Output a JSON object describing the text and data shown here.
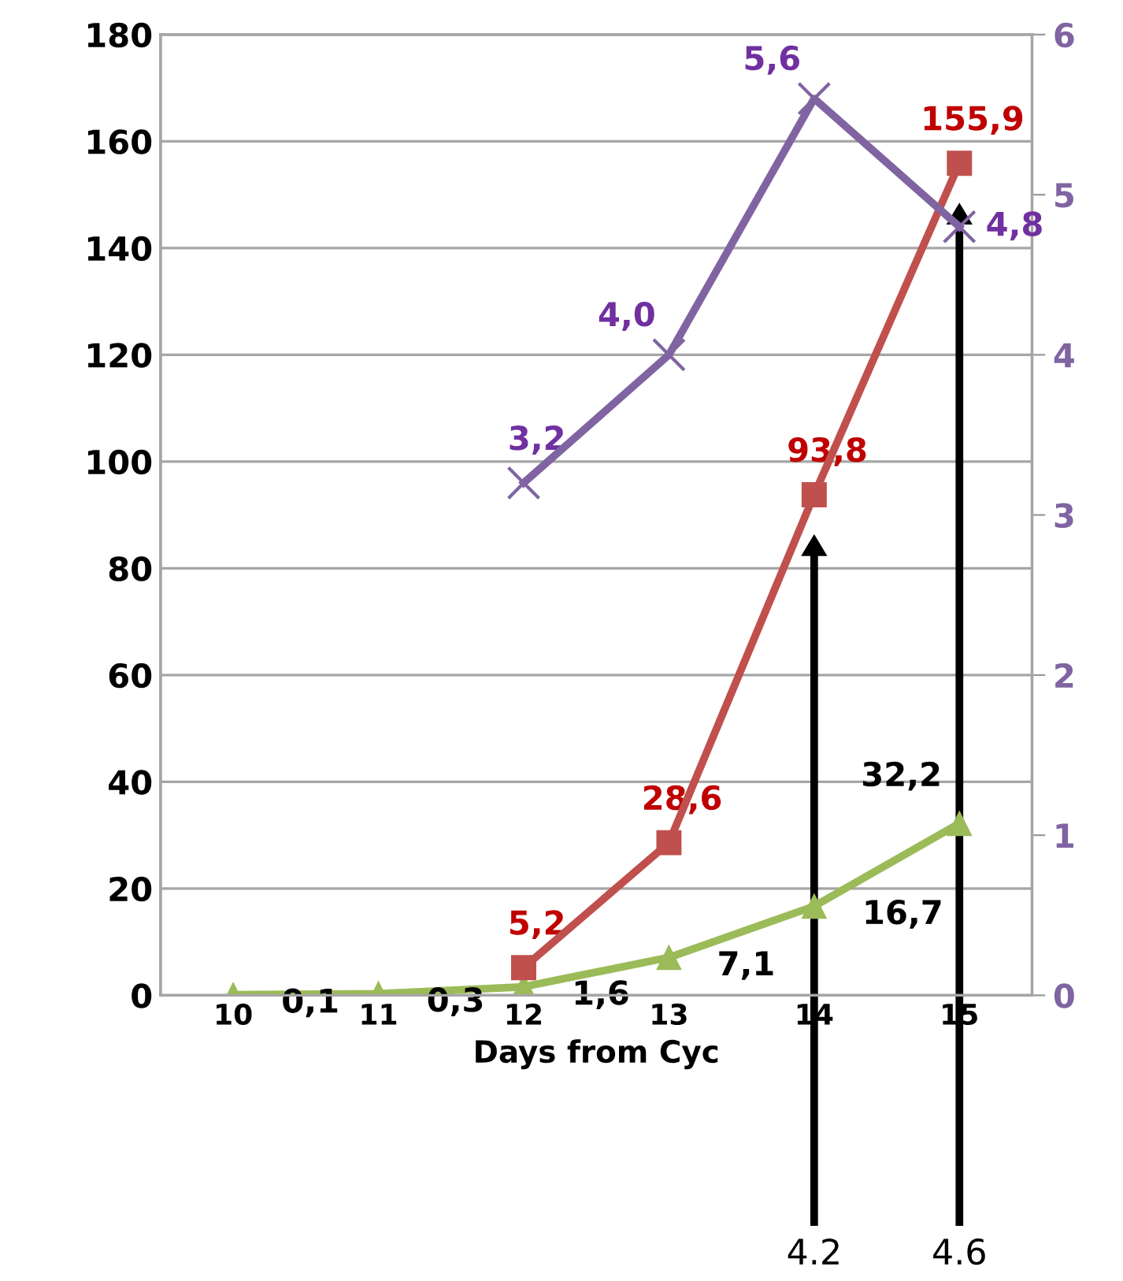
{
  "chart_data": {
    "type": "line",
    "xlabel": "Days from Cyc",
    "categories": [
      "10",
      "11",
      "12",
      "13",
      "14",
      "15"
    ],
    "series": [
      {
        "color": "#9bbb59",
        "marker": "triangle",
        "values": [
          0.1,
          0.3,
          1.6,
          7.1,
          16.7,
          32.2
        ],
        "value_labels": [
          "0,1",
          "0,3",
          "1,6",
          "7,1",
          "16,7",
          "32,2"
        ]
      },
      {
        "color": "#c0504d",
        "marker": "square",
        "values": [
          null,
          null,
          5.2,
          28.6,
          93.8,
          155.9
        ],
        "value_labels": [
          null,
          null,
          "5,2",
          "28,6",
          "93,8",
          "155,9"
        ]
      },
      {
        "color": "#8064a2",
        "marker": "cross",
        "axis": "y2",
        "values": [
          null,
          null,
          3.2,
          4.0,
          5.6,
          4.8
        ],
        "value_labels": [
          null,
          null,
          "3,2",
          "4,0",
          "5,6",
          "4,8"
        ]
      }
    ],
    "ylim": [
      0,
      180
    ],
    "yticks": [
      0,
      20,
      40,
      60,
      80,
      100,
      120,
      140,
      160,
      180
    ],
    "y2lim": [
      0,
      6
    ],
    "y2ticks": [
      0,
      1,
      2,
      3,
      4,
      5,
      6
    ],
    "grid": "y",
    "annotations": [
      "4.2",
      "4.6"
    ]
  }
}
